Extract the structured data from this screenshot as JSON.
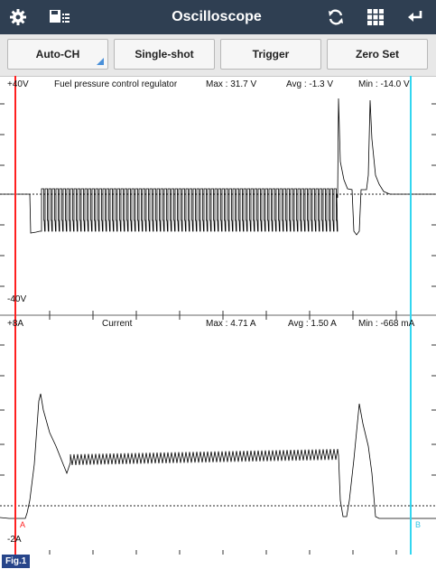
{
  "toolbar": {
    "title": "Oscilloscope",
    "left_icons": [
      "gear-icon",
      "save-list-icon"
    ],
    "right_icons": [
      "refresh-icon",
      "grid-icon",
      "back-arrow-icon"
    ]
  },
  "buttons": {
    "auto_ch": "Auto-CH",
    "single_shot": "Single-shot",
    "trigger": "Trigger",
    "zero_set": "Zero Set"
  },
  "channel1": {
    "max_label": "+40V",
    "min_label": "-40V",
    "name": "Fuel pressure control regulator",
    "max": "Max : 31.7 V",
    "avg": "Avg : -1.3 V",
    "min": "Min : -14.0 V"
  },
  "channel2": {
    "max_label": "+8A",
    "min_label": "-2A",
    "name": "Current",
    "max": "Max : 4.71 A",
    "avg": "Avg : 1.50 A",
    "min": "Min : -668 mA"
  },
  "cursors": {
    "a_label": "A",
    "b_label": "B",
    "a_color": "#ff2020",
    "b_color": "#33d6f0"
  },
  "figure_label": "Fig.1"
}
